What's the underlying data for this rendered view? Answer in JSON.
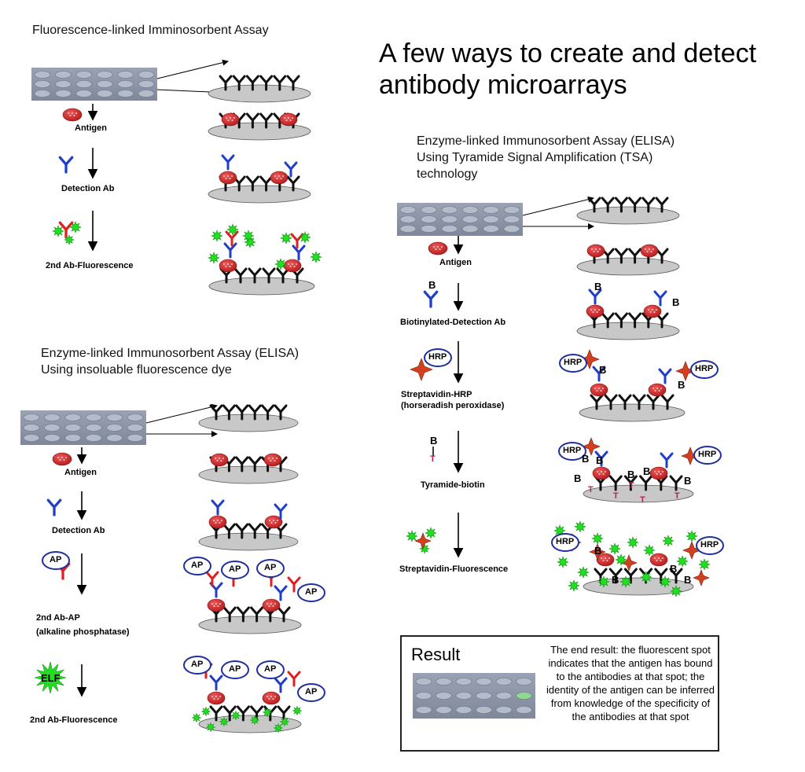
{
  "title_lines": [
    "A few ways to create and detect",
    "antibody microarrays"
  ],
  "fluorescence": {
    "title": "Fluorescence-linked Imminosorbent Assay",
    "steps": [
      "Antigen",
      "Detection Ab",
      "2nd Ab-Fluorescence"
    ]
  },
  "elisa_dye": {
    "title_lines": [
      "Enzyme-linked Immunosorbent Assay (ELISA)",
      "Using insoluable fluorescence dye"
    ],
    "steps": [
      "Antigen",
      "Detection Ab",
      "2nd Ab-AP",
      "(alkaline phosphatase)",
      "2nd Ab-Fluorescence"
    ],
    "ap": "AP",
    "elf": "ELF"
  },
  "elisa_tsa": {
    "title_lines": [
      "Enzyme-linked Immunosorbent Assay (ELISA)",
      "Using Tyramide Signal Amplification (TSA)",
      "technology"
    ],
    "steps": [
      "Antigen",
      "Biotinylated-Detection Ab",
      "Streptavidin-HRP",
      "(horseradish peroxidase)",
      "Tyramide-biotin",
      "Streptavidin-Fluorescence"
    ],
    "hrp": "HRP",
    "b": "B",
    "t": "T"
  },
  "result": {
    "title": "Result",
    "text": "The end result: the fluorescent spot indicates that the antigen has bound to the antibodies at that spot; the identity of the antigen can be inferred from knowledge of the specificity of the antibodies at that spot"
  },
  "colors": {
    "chip": "#8f97a8",
    "plate": "#c8c8c8",
    "antibody": "#111111",
    "antigen": "#c0282a",
    "detection_ab": "#1f3fc8",
    "secondary_ab": "#e02020",
    "fluor": "#22dd22",
    "streptavidin": "#d2401e",
    "tyramide": "#c0205a",
    "spot": "#8fd88f"
  }
}
